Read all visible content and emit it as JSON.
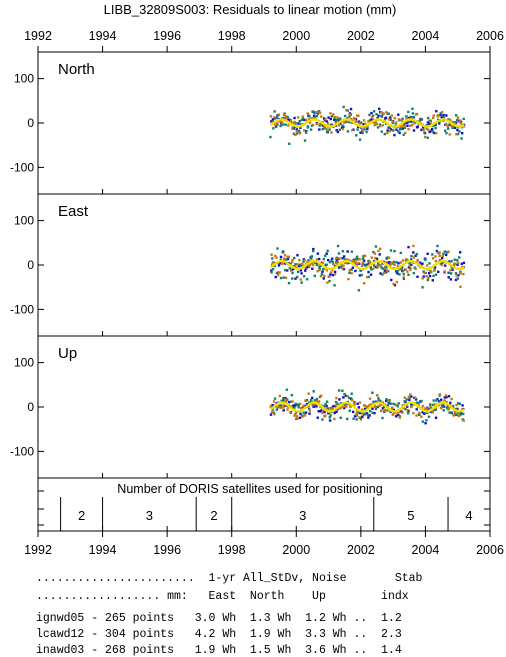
{
  "title": "LIBB_32809S003: Residuals to linear motion (mm)",
  "chart_data": {
    "type": "scatter",
    "title": "LIBB_32809S003: Residuals to linear motion (mm)",
    "xlim": [
      1992,
      2006
    ],
    "x_ticks": [
      "1992",
      "1994",
      "1996",
      "1998",
      "2000",
      "2002",
      "2004",
      "2006"
    ],
    "panels": [
      {
        "name": "North",
        "ylim": [
          -160,
          160
        ],
        "y_ticks": [
          "100",
          "0",
          "-100"
        ],
        "t_start": 1999.2,
        "t_end": 2005.2,
        "spread": [
          16,
          22,
          18
        ],
        "seasonal_amp": 8
      },
      {
        "name": "East",
        "ylim": [
          -160,
          160
        ],
        "y_ticks": [
          "100",
          "0",
          "-100"
        ],
        "t_start": 1999.2,
        "t_end": 2005.2,
        "spread": [
          20,
          30,
          22
        ],
        "seasonal_amp": 9
      },
      {
        "name": "Up",
        "ylim": [
          -160,
          160
        ],
        "y_ticks": [
          "100",
          "0",
          "-100"
        ],
        "t_start": 1999.2,
        "t_end": 2005.2,
        "spread": [
          14,
          20,
          15
        ],
        "seasonal_amp": 10
      }
    ],
    "series": [
      {
        "name": "ignwd05",
        "color": "#1010c8"
      },
      {
        "name": "lcawd12",
        "color": "#10806e"
      },
      {
        "name": "inawd03",
        "color": "#c87810"
      }
    ],
    "fit_color": "#f0e000",
    "satellites": {
      "label": "Number of DORIS satellites used for positioning",
      "segments": [
        {
          "start": 1992.7,
          "end": 1994.0,
          "count": "2"
        },
        {
          "start": 1994.0,
          "end": 1996.9,
          "count": "3"
        },
        {
          "start": 1996.9,
          "end": 1998.0,
          "count": "2"
        },
        {
          "start": 1998.0,
          "end": 2002.4,
          "count": "3"
        },
        {
          "start": 2002.4,
          "end": 2004.7,
          "count": "5"
        },
        {
          "start": 2004.7,
          "end": 2006.0,
          "count": "4"
        }
      ]
    }
  },
  "table": {
    "header1": ".......................  1-yr All_StDv, Noise       Stab",
    "header2": ".................. mm:   East  North    Up        indx",
    "rows": [
      {
        "text": "ignwd05 - 265 points   3.0 Wh  1.3 Wh  1.2 Wh ..  1.2",
        "color": "#1010c8"
      },
      {
        "text": "lcawd12 - 304 points   4.2 Wh  1.9 Wh  3.3 Wh ..  2.3",
        "color": "#10806e"
      },
      {
        "text": "inawd03 - 268 points   1.9 Wh  1.5 Wh  3.6 Wh ..  1.4",
        "color": "#c87810"
      }
    ]
  }
}
